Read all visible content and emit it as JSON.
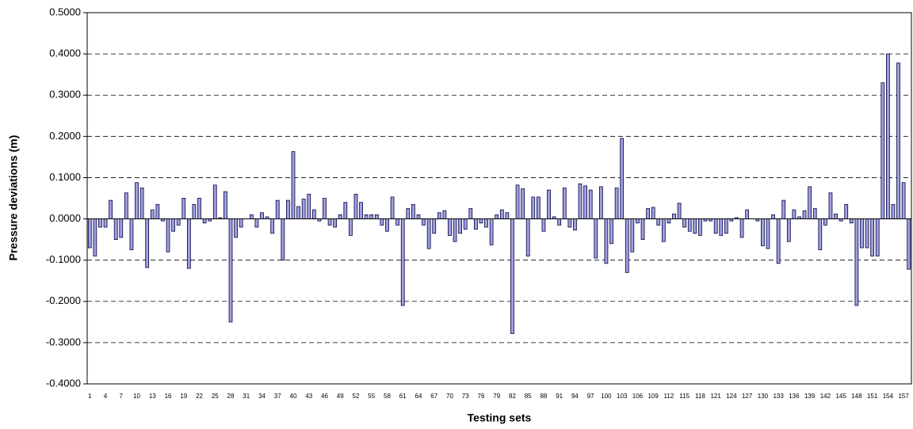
{
  "chart_data": {
    "type": "bar",
    "x_label": "Testing sets",
    "y_label": "Pressure deviations (m)",
    "color": "#a0a0e0",
    "edge_color": "#000040",
    "grid": true,
    "ylim": [
      -0.4,
      0.5
    ],
    "yticks": [
      {
        "value": -0.4,
        "label": "-0.4000"
      },
      {
        "value": -0.3,
        "label": "-0.3000"
      },
      {
        "value": -0.2,
        "label": "-0.2000"
      },
      {
        "value": -0.1,
        "label": "-0.1000"
      },
      {
        "value": 0,
        "label": "0.0000"
      },
      {
        "value": 0.1,
        "label": "0.1000"
      },
      {
        "value": 0.2,
        "label": "0.2000"
      },
      {
        "value": 0.3,
        "label": "0.3000"
      },
      {
        "value": 0.4,
        "label": "0.4000"
      },
      {
        "value": 0.5,
        "label": "0.5000"
      }
    ],
    "categories": [
      1,
      null,
      null,
      4,
      null,
      null,
      7,
      null,
      null,
      10,
      null,
      null,
      13,
      null,
      null,
      16,
      null,
      null,
      19,
      null,
      null,
      22,
      null,
      null,
      25,
      null,
      null,
      28,
      null,
      null,
      31,
      null,
      null,
      34,
      null,
      null,
      37,
      null,
      null,
      40,
      null,
      null,
      43,
      null,
      null,
      46,
      null,
      null,
      49,
      null,
      null,
      52,
      null,
      null,
      55,
      null,
      null,
      58,
      null,
      null,
      61,
      null,
      null,
      64,
      null,
      null,
      67,
      null,
      null,
      70,
      null,
      null,
      73,
      null,
      null,
      76,
      null,
      null,
      79,
      null,
      null,
      82,
      null,
      null,
      85,
      null,
      null,
      88,
      null,
      null,
      91,
      null,
      null,
      94,
      null,
      null,
      97,
      null,
      null,
      100,
      null,
      null,
      103,
      null,
      null,
      106,
      null,
      null,
      109,
      null,
      null,
      112,
      null,
      null,
      115,
      null,
      null,
      118,
      null,
      null,
      121,
      null,
      null,
      124,
      null,
      null,
      127,
      null,
      null,
      130,
      null,
      null,
      133,
      null,
      null,
      136,
      null,
      null,
      139,
      null,
      null,
      142,
      null,
      null,
      145,
      null,
      null,
      148,
      null,
      null,
      151,
      null,
      null,
      154,
      null,
      null,
      157,
      null
    ],
    "values": [
      -0.07,
      -0.09,
      -0.02,
      -0.02,
      0.045,
      -0.05,
      -0.045,
      0.063,
      -0.075,
      0.088,
      0.075,
      -0.118,
      0.022,
      0.035,
      -0.005,
      -0.08,
      -0.03,
      -0.015,
      0.05,
      -0.12,
      0.035,
      0.05,
      -0.01,
      -0.005,
      0.082,
      0.003,
      0.066,
      -0.25,
      -0.045,
      -0.02,
      0,
      0.01,
      -0.02,
      0.015,
      0.005,
      -0.035,
      0.045,
      -0.1,
      0.045,
      0.163,
      0.03,
      0.048,
      0.06,
      0.022,
      -0.005,
      0.05,
      -0.015,
      -0.02,
      0.01,
      0.04,
      -0.04,
      0.06,
      0.04,
      0.01,
      0.01,
      0.01,
      -0.015,
      -0.03,
      0.053,
      -0.015,
      -0.21,
      0.025,
      0.035,
      0.01,
      -0.015,
      -0.072,
      -0.035,
      0.015,
      0.02,
      -0.04,
      -0.055,
      -0.035,
      -0.025,
      0.025,
      -0.025,
      -0.01,
      -0.02,
      -0.063,
      0.01,
      0.022,
      0.015,
      -0.278,
      0.082,
      0.073,
      -0.09,
      0.053,
      0.053,
      -0.03,
      0.07,
      0.005,
      -0.015,
      0.075,
      -0.02,
      -0.027,
      0.085,
      0.08,
      0.07,
      -0.095,
      0.078,
      -0.108,
      -0.06,
      0.075,
      0.195,
      -0.13,
      -0.08,
      -0.01,
      -0.05,
      0.025,
      0.028,
      -0.015,
      -0.055,
      -0.01,
      0.012,
      0.038,
      -0.02,
      -0.03,
      -0.035,
      -0.04,
      -0.005,
      -0.005,
      -0.035,
      -0.04,
      -0.035,
      -0.005,
      0.003,
      -0.045,
      0.022,
      0,
      -0.005,
      -0.065,
      -0.072,
      0.01,
      -0.108,
      0.045,
      -0.055,
      0.022,
      0.005,
      0.02,
      0.078,
      0.025,
      -0.075,
      -0.015,
      0.063,
      0.012,
      -0.005,
      0.035,
      -0.01,
      -0.21,
      -0.07,
      -0.07,
      -0.09,
      -0.09,
      0.33,
      0.4,
      0.035,
      0.378,
      0.088,
      -0.122
    ]
  }
}
